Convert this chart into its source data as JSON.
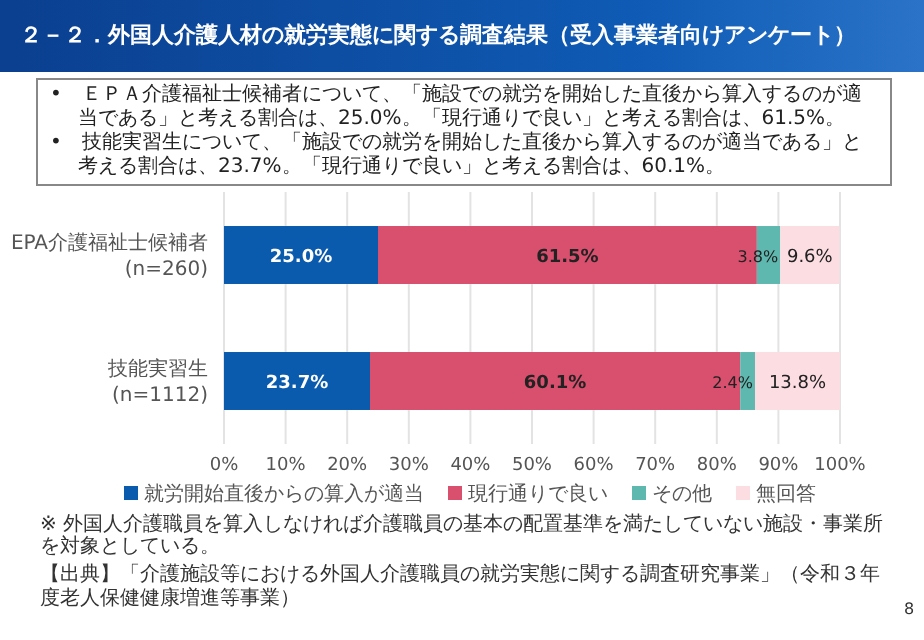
{
  "chart_data": {
    "type": "bar",
    "orientation": "horizontal",
    "stacked": true,
    "title": "２－２．外国人介護人材の就労実態に関する調査結果（受入事業者向けアンケート）",
    "categories": [
      "EPA介護福祉士候補者\n(n=260)",
      "技能実習生\n(n=1112)"
    ],
    "series": [
      {
        "name": "就労開始直後からの算入が適当",
        "color": "#0a5bad",
        "values": [
          25.0,
          23.7
        ],
        "value_labels": [
          "25.0%",
          "23.7%"
        ]
      },
      {
        "name": "現行通りで良い",
        "color": "#d94f6e",
        "values": [
          61.5,
          60.1
        ],
        "value_labels": [
          "61.5%",
          "60.1%"
        ]
      },
      {
        "name": "その他",
        "color": "#5fb8b0",
        "values": [
          3.8,
          2.4
        ],
        "value_labels": [
          "3.8%",
          "2.4%"
        ]
      },
      {
        "name": "無回答",
        "color": "#fcdde2",
        "values": [
          9.6,
          13.8
        ],
        "value_labels": [
          "9.6%",
          "13.8%"
        ]
      }
    ],
    "xlim": [
      0,
      100
    ],
    "xticks": [
      {
        "value": 0,
        "label": "0%"
      },
      {
        "value": 10,
        "label": "10%"
      },
      {
        "value": 20,
        "label": "20%"
      },
      {
        "value": 30,
        "label": "30%"
      },
      {
        "value": 40,
        "label": "40%"
      },
      {
        "value": 50,
        "label": "50%"
      },
      {
        "value": 60,
        "label": "60%"
      },
      {
        "value": 70,
        "label": "70%"
      },
      {
        "value": 80,
        "label": "80%"
      },
      {
        "value": 90,
        "label": "90%"
      },
      {
        "value": 100,
        "label": "100%"
      }
    ],
    "grid": "x",
    "legend": "bottom",
    "annotations": [
      "•　ＥＰＡ介護福祉士候補者について、「施設での就労を開始した直後から算入するのが適当である」と考える割合は、25.0%。「現行通りで良い」と考える割合は、61.5%。",
      "•　技能実習生について、「施設での就労を開始した直後から算入するのが適当である」と考える割合は、23.7%。「現行通りで良い」と考える割合は、60.1%。",
      "※ 外国人介護職員を算入しなければ介護職員の基本の配置基準を満たしていない施設・事業所を対象としている。",
      "【出典】「介護施設等における外国人介護職員の就労実態に関する調査研究事業」（令和３年度老人保健健康増進等事業）",
      "8"
    ]
  }
}
